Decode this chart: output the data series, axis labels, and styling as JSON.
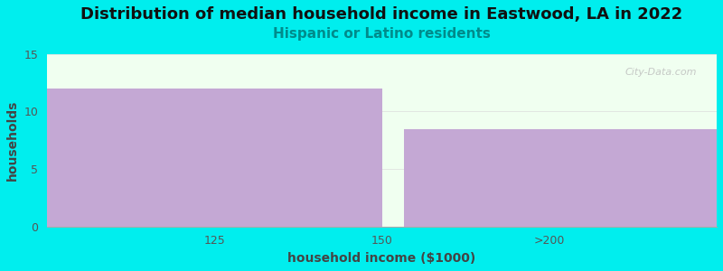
{
  "title": "Distribution of median household income in Eastwood, LA in 2022",
  "subtitle": "Hispanic or Latino residents",
  "xlabel": "household income ($1000)",
  "ylabel": "households",
  "background_color": "#00EEEE",
  "plot_bg_color": "#F0FFF0",
  "bar_values": [
    12,
    0,
    8.5
  ],
  "bar_color": "#C4A8D4",
  "bar_color_gap": "#E8F5E0",
  "ylim": [
    0,
    15
  ],
  "yticks": [
    0,
    5,
    10,
    15
  ],
  "title_fontsize": 13,
  "subtitle_fontsize": 11,
  "subtitle_color": "#008B8B",
  "axis_label_fontsize": 10,
  "tick_fontsize": 9,
  "watermark": "City-Data.com",
  "xtick_labels": [
    "125",
    "150",
    ">200"
  ],
  "xtick_positions": [
    0.75,
    1.5,
    2.25
  ]
}
